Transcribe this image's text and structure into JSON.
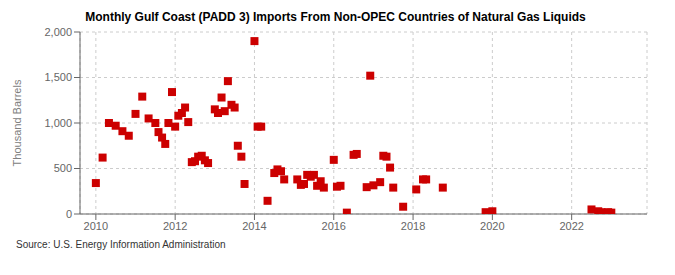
{
  "chart_data": {
    "type": "scatter",
    "title": "Monthly Gulf Coast (PADD 3) Imports From Non-OPEC Countries of Natural Gas Liquids",
    "ylabel": "Thousand Barrels",
    "annotations": [
      "Source: U.S. Energy Information Administration"
    ],
    "color": "#cc0000",
    "marker": "square",
    "grid": true,
    "xlim": [
      2009.6,
      2023.9
    ],
    "xticks": [
      2010,
      2012,
      2014,
      2016,
      2018,
      2020,
      2022
    ],
    "ylim": [
      0,
      2000
    ],
    "yticks": [
      0,
      500,
      {
        "value": 1000,
        "label": "1,000"
      },
      {
        "value": 1500,
        "label": "1,500"
      },
      {
        "value": 2000,
        "label": "2,000"
      }
    ],
    "x": [
      2010.0,
      2010.17,
      2010.33,
      2010.5,
      2010.67,
      2010.83,
      2011.0,
      2011.17,
      2011.33,
      2011.5,
      2011.58,
      2011.67,
      2011.75,
      2011.83,
      2011.92,
      2012.0,
      2012.08,
      2012.17,
      2012.25,
      2012.33,
      2012.42,
      2012.5,
      2012.58,
      2012.67,
      2012.75,
      2012.83,
      2013.0,
      2013.08,
      2013.17,
      2013.25,
      2013.33,
      2013.42,
      2013.5,
      2013.58,
      2013.67,
      2013.75,
      2014.0,
      2014.08,
      2014.17,
      2014.33,
      2014.5,
      2014.58,
      2014.67,
      2014.75,
      2015.08,
      2015.17,
      2015.25,
      2015.33,
      2015.42,
      2015.5,
      2015.58,
      2015.67,
      2015.75,
      2016.0,
      2016.08,
      2016.17,
      2016.33,
      2016.5,
      2016.58,
      2016.83,
      2016.92,
      2017.0,
      2017.17,
      2017.25,
      2017.33,
      2017.42,
      2017.5,
      2017.75,
      2018.08,
      2018.25,
      2018.33,
      2018.75,
      2019.83,
      2020.0,
      2022.5,
      2022.67,
      2022.75,
      2022.92,
      2023.0
    ],
    "values": [
      340,
      620,
      1000,
      970,
      910,
      860,
      1100,
      1290,
      1050,
      1000,
      900,
      840,
      770,
      1000,
      1340,
      960,
      1080,
      1110,
      1170,
      1010,
      570,
      580,
      630,
      640,
      590,
      560,
      1150,
      1110,
      1280,
      1130,
      1460,
      1200,
      1170,
      750,
      630,
      330,
      1900,
      960,
      960,
      145,
      450,
      490,
      470,
      380,
      380,
      320,
      330,
      430,
      410,
      430,
      310,
      360,
      290,
      595,
      300,
      310,
      15,
      650,
      660,
      295,
      1520,
      315,
      350,
      640,
      630,
      510,
      290,
      80,
      270,
      380,
      380,
      290,
      20,
      30,
      50,
      30,
      20,
      20,
      15
    ]
  }
}
